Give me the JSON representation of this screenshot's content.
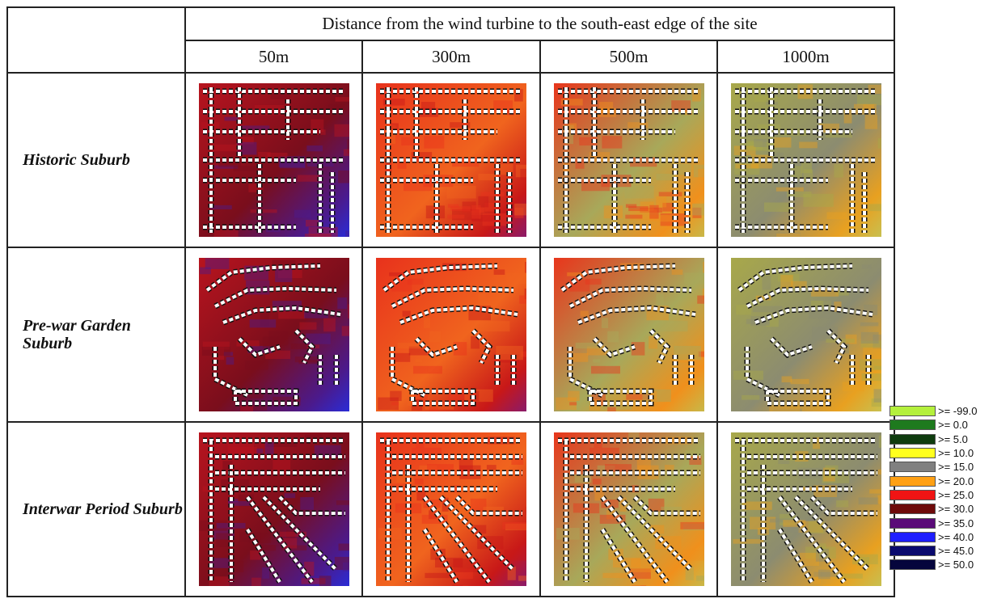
{
  "header": {
    "title": "Distance from the wind turbine to the south-east edge of the site",
    "columns": [
      "50m",
      "300m",
      "500m",
      "1000m"
    ]
  },
  "rows": [
    {
      "label": "Historic Suburb"
    },
    {
      "label": "Pre-war Garden Suburb"
    },
    {
      "label": "Interwar Period Suburb"
    }
  ],
  "color_maps": {
    "50m": {
      "base": "#b8141e",
      "secondary": "#7a0e1c",
      "accent": "#4b1a8c",
      "highlight": "#2a2cd6"
    },
    "300m": {
      "base": "#e8321c",
      "secondary": "#f0641e",
      "accent": "#c81818",
      "highlight": "#8a1a6a"
    },
    "500m": {
      "base": "#e8361c",
      "secondary": "#a8a85a",
      "accent": "#f0901c",
      "highlight": "#c8b848"
    },
    "1000m": {
      "base": "#a8a84a",
      "secondary": "#8c8c70",
      "accent": "#e8a020",
      "highlight": "#c8c050"
    }
  },
  "legend": [
    {
      "label": ">= -99.0",
      "color": "#b4f03c"
    },
    {
      "label": ">= 0.0",
      "color": "#1e7a1e"
    },
    {
      "label": ">= 5.0",
      "color": "#0f3c0f"
    },
    {
      "label": ">= 10.0",
      "color": "#ffff1e"
    },
    {
      "label": ">= 15.0",
      "color": "#808080"
    },
    {
      "label": ">= 20.0",
      "color": "#ffa014"
    },
    {
      "label": ">= 25.0",
      "color": "#f01414"
    },
    {
      "label": ">= 30.0",
      "color": "#6e0a0a"
    },
    {
      "label": ">= 35.0",
      "color": "#5a0a78"
    },
    {
      "label": ">= 40.0",
      "color": "#1e1eff"
    },
    {
      "label": ">= 45.0",
      "color": "#0a0a6e"
    },
    {
      "label": ">= 50.0",
      "color": "#05053c"
    }
  ]
}
